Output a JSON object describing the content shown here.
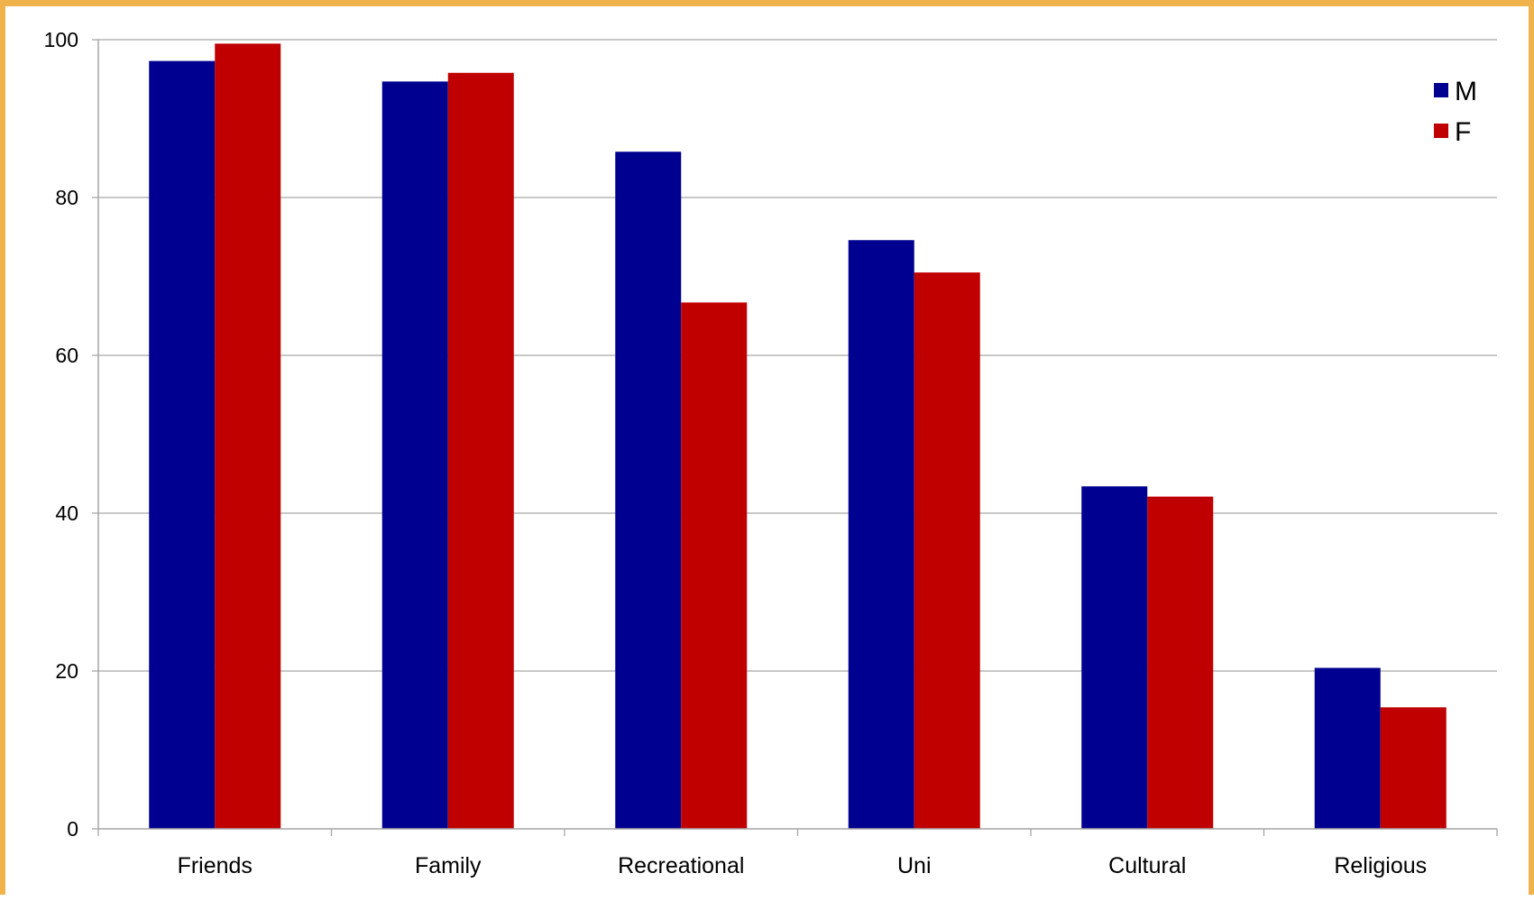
{
  "colors": {
    "frame": "#f0b24a",
    "gridline": "#a6a6a6",
    "axis": "#a6a6a6",
    "series_m": "#000090",
    "series_f": "#c00000"
  },
  "chart_data": {
    "type": "bar",
    "title": "",
    "xlabel": "",
    "ylabel": "",
    "categories": [
      "Friends",
      "Family",
      "Recreational",
      "Uni",
      "Cultural",
      "Religious"
    ],
    "series": [
      {
        "name": "M",
        "values": [
          97.3,
          94.7,
          85.8,
          74.6,
          43.4,
          20.4
        ]
      },
      {
        "name": "F",
        "values": [
          99.5,
          95.8,
          66.7,
          70.5,
          42.1,
          15.4
        ]
      }
    ],
    "ylim": [
      0,
      100
    ],
    "yticks": [
      "0",
      "20",
      "40",
      "60",
      "80",
      "100"
    ],
    "grid": true,
    "legend_position": "top-right"
  }
}
